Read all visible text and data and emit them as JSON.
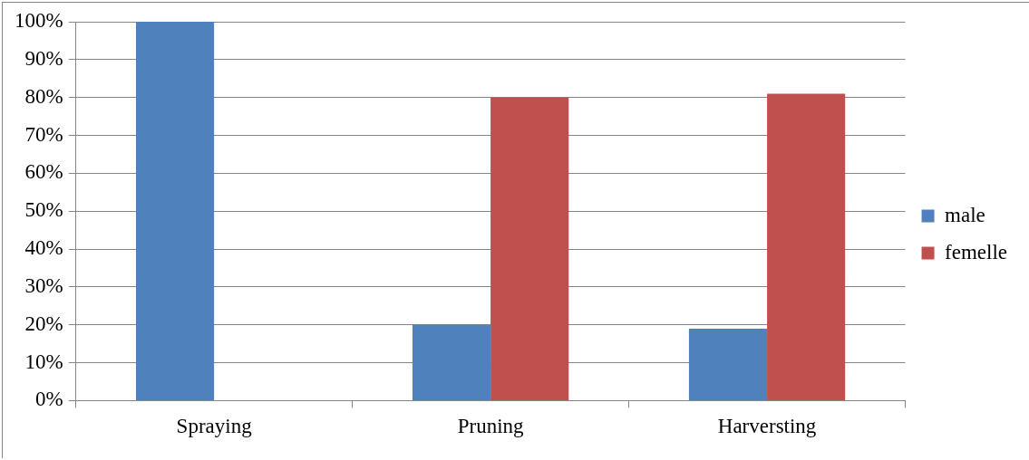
{
  "chart_data": {
    "type": "bar",
    "categories": [
      "Spraying",
      "Pruning",
      "Harversting"
    ],
    "series": [
      {
        "name": "male",
        "color": "#4f81bd",
        "values": [
          100,
          20,
          19
        ]
      },
      {
        "name": "femelle",
        "color": "#c0504d",
        "values": [
          0,
          80,
          81
        ]
      }
    ],
    "ylim": [
      0,
      100
    ],
    "yticks": [
      {
        "value": 0,
        "label": "0%"
      },
      {
        "value": 10,
        "label": "10%"
      },
      {
        "value": 20,
        "label": "20%"
      },
      {
        "value": 30,
        "label": "30%"
      },
      {
        "value": 40,
        "label": "40%"
      },
      {
        "value": 50,
        "label": "50%"
      },
      {
        "value": 60,
        "label": "60%"
      },
      {
        "value": 70,
        "label": "70%"
      },
      {
        "value": 80,
        "label": "80%"
      },
      {
        "value": 90,
        "label": "90%"
      },
      {
        "value": 100,
        "label": "100%"
      }
    ],
    "grid": "y",
    "legend": "right"
  }
}
